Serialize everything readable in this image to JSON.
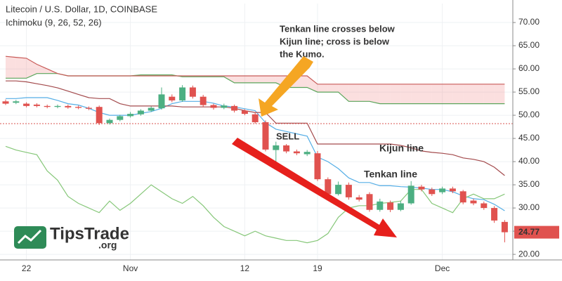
{
  "chart_data": {
    "type": "candlestick",
    "title": "Litecoin / U.S. Dollar, 1D, COINBASE",
    "subtitle": "Ichimoku (9, 26, 52, 26)",
    "categories": [
      null,
      null,
      "22",
      null,
      null,
      null,
      null,
      null,
      null,
      null,
      null,
      null,
      "Nov",
      null,
      null,
      null,
      null,
      null,
      null,
      null,
      null,
      null,
      null,
      "12",
      null,
      null,
      null,
      null,
      null,
      null,
      "19",
      null,
      null,
      null,
      null,
      null,
      null,
      null,
      null,
      null,
      null,
      null,
      "Dec",
      null,
      null,
      null,
      null,
      null,
      null
    ],
    "open": [
      53,
      52.7,
      52.5,
      52.3,
      52,
      51.8,
      52,
      51.8,
      51.6,
      51.8,
      48.3,
      49,
      49.8,
      50.2,
      51,
      51.5,
      54,
      53.2,
      56,
      54,
      52.2,
      51.6,
      52,
      51,
      50.2,
      48.5,
      42.5,
      43.5,
      42.2,
      41.6,
      41.8,
      36.2,
      33,
      35,
      32.3,
      33,
      29.6,
      31.2,
      29.6,
      31,
      34.6,
      34,
      33.4,
      34.2,
      33.6,
      31.6,
      31,
      30,
      27
    ],
    "high": [
      53.4,
      53.3,
      52.8,
      52.6,
      52.3,
      52.3,
      52.3,
      52.1,
      51.9,
      52.1,
      49.3,
      50.1,
      50.7,
      51.3,
      51.9,
      56,
      54.5,
      56.5,
      56.4,
      54.4,
      52.5,
      52.5,
      52.3,
      51.3,
      50.6,
      48.9,
      44.3,
      43.8,
      42.6,
      42.5,
      42.3,
      36.6,
      35.7,
      35.5,
      32.8,
      33.4,
      32,
      31.6,
      31.5,
      35.8,
      35,
      34.4,
      34.6,
      34.6,
      33.9,
      32,
      31.4,
      30.4,
      27.4
    ],
    "low": [
      52.2,
      52.4,
      51.7,
      51.7,
      51.5,
      51.5,
      51.4,
      51.3,
      51.1,
      47.9,
      48,
      48.7,
      49.5,
      49.9,
      50.7,
      51.2,
      52.8,
      52.9,
      53.6,
      51.8,
      51.2,
      51.3,
      50.6,
      50,
      48.2,
      42.2,
      39.5,
      41.8,
      41.4,
      41.2,
      35.8,
      32.5,
      32.7,
      31.8,
      31.4,
      29.2,
      29.2,
      29.1,
      29.3,
      30.7,
      33.6,
      32.6,
      33,
      33.2,
      30.8,
      30.6,
      29.6,
      26.8,
      22.6
    ],
    "close": [
      52.5,
      53,
      52,
      52,
      51.8,
      52,
      51.7,
      51.6,
      51.4,
      48.3,
      49,
      49.8,
      50.3,
      51,
      51.6,
      54.5,
      53.2,
      56,
      54,
      52.2,
      51.6,
      52.1,
      51,
      50.3,
      48.5,
      42.6,
      43.5,
      42.2,
      41.8,
      42.1,
      36.2,
      33,
      35,
      32.3,
      31.8,
      29.6,
      31.4,
      29.6,
      31,
      34.8,
      34,
      33,
      34.2,
      33.6,
      31.2,
      31,
      30,
      27.3,
      24.77
    ],
    "up_color": "#4caf82",
    "down_color": "#e0524f",
    "lines": [
      {
        "name": "Tenkan line",
        "color": "#55aee6",
        "values": [
          53.6,
          53.6,
          53.8,
          53.8,
          53.8,
          53.2,
          52.5,
          52.2,
          51.5,
          50.6,
          50,
          50,
          50,
          50.4,
          50.8,
          51.5,
          52.5,
          53,
          53,
          53,
          52.6,
          52,
          51.8,
          51.4,
          51,
          48.4,
          47,
          46.5,
          46,
          45.5,
          41,
          40,
          38.5,
          36.5,
          35.5,
          35.5,
          34.8,
          34.8,
          34.6,
          34.5,
          34.3,
          34,
          34,
          33.5,
          32.6,
          32,
          31.8,
          30.8,
          29.4
        ]
      },
      {
        "name": "Kijun line",
        "color": "#a34a4c",
        "values": [
          57.4,
          57.4,
          57.2,
          56.8,
          56.4,
          55.9,
          55.2,
          54.5,
          53.8,
          53.6,
          53.6,
          52.5,
          52,
          52,
          52,
          52,
          52,
          51.8,
          51.8,
          51.8,
          51.8,
          51.8,
          51.5,
          51,
          50.6,
          50.6,
          48.3,
          48.3,
          48.3,
          48.3,
          43.8,
          43.8,
          43.8,
          43.8,
          43.8,
          43.8,
          43.8,
          43.8,
          43.5,
          43,
          42.3,
          42,
          41.8,
          41.5,
          40.8,
          40.5,
          40,
          38.8,
          37
        ]
      },
      {
        "color": "#86c779",
        "values": [
          43.3,
          42.5,
          42,
          41.5,
          38,
          36,
          32.5,
          31,
          30,
          29,
          31.5,
          29.5,
          31,
          33,
          35,
          33.5,
          32,
          31,
          32.5,
          30.5,
          28,
          26,
          25,
          24,
          25,
          24,
          23.5,
          23,
          23,
          22.5,
          23,
          24.5,
          28,
          30,
          30.5,
          30.5,
          31,
          31.2,
          31.5,
          34,
          34,
          31,
          30,
          29,
          32,
          33,
          32,
          32,
          33
        ]
      }
    ],
    "senkou_a": {
      "color": "#5ba55b",
      "values": [
        58,
        58,
        58,
        59,
        59,
        59,
        58.5,
        58.5,
        58.5,
        58.5,
        58.5,
        58.5,
        58.5,
        58.7,
        58.7,
        58.7,
        58.7,
        58.3,
        58.3,
        58.3,
        58.3,
        58.3,
        57,
        57,
        57,
        57,
        57,
        56,
        56,
        56,
        55,
        55,
        55,
        53,
        53,
        53,
        52.5,
        52.5,
        52.5,
        52.5,
        52.5,
        52.5,
        52.5,
        52.5,
        52.5,
        52.5,
        52.5,
        52.5,
        52.5
      ]
    },
    "senkou_b": {
      "color": "#c85a57",
      "values": [
        62.7,
        62.5,
        62.3,
        61,
        60,
        59,
        58.5,
        58.5,
        58.5,
        58.5,
        58.5,
        58.5,
        58.5,
        58.5,
        58.5,
        58.5,
        58.5,
        58.5,
        58.5,
        58.5,
        58.5,
        58.5,
        58.5,
        58.5,
        58.5,
        58.5,
        58.5,
        58.5,
        58.5,
        58.5,
        56.7,
        56.7,
        56.7,
        56.7,
        56.7,
        56.7,
        56.7,
        56.7,
        56.7,
        56.7,
        56.7,
        56.7,
        56.7,
        56.7,
        56.7,
        56.7,
        56.7,
        56.7,
        56.7
      ]
    },
    "cloud_colors": {
      "bear": "rgba(240,140,140,0.28)",
      "bull": "rgba(120,200,120,0.28)"
    },
    "price_line": {
      "value": 48.2,
      "color": "#d9534f"
    },
    "ylim": [
      18.8,
      74.1
    ],
    "yticks": [
      {
        "value": 20,
        "label": "20.00"
      },
      {
        "value": 25,
        "label": "25.00"
      },
      {
        "value": 30,
        "label": "30.00"
      },
      {
        "value": 35,
        "label": "35.00"
      },
      {
        "value": 40,
        "label": "40.00"
      },
      {
        "value": 45,
        "label": "45.00"
      },
      {
        "value": 50,
        "label": "50.00"
      },
      {
        "value": 55,
        "label": "55.00"
      },
      {
        "value": 60,
        "label": "60.00"
      },
      {
        "value": 65,
        "label": "65.00"
      },
      {
        "value": 70,
        "label": "70.00"
      }
    ],
    "grid": true,
    "annotation": {
      "lines": [
        "Tenkan line crosses below",
        "Kijun line; cross is below",
        "the Kumo."
      ]
    },
    "signal": "SELL"
  },
  "logo": {
    "name": "TipsTrade",
    "suffix": ".org"
  }
}
